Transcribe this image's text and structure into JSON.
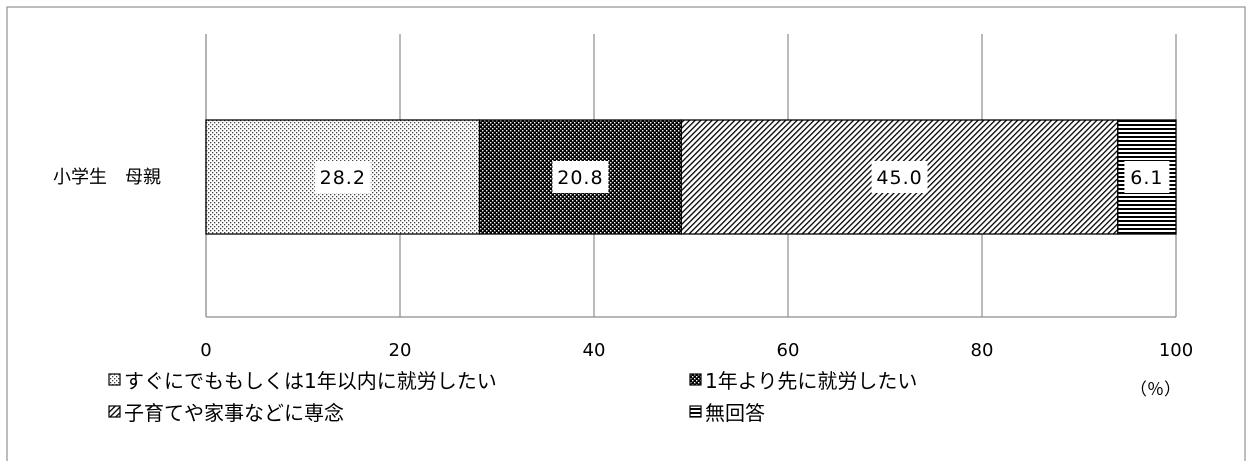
{
  "chart_data": {
    "type": "bar",
    "orientation": "horizontal",
    "stacked": true,
    "categories": [
      "小学生　母親"
    ],
    "series": [
      {
        "name": "すぐにでももしくは1年以内に就労したい",
        "values": [
          28.2
        ],
        "label": "28.2",
        "pattern": "dots"
      },
      {
        "name": "1年より先に就労したい",
        "values": [
          20.8
        ],
        "label": "20.8",
        "pattern": "dense-checker"
      },
      {
        "name": "子育てや家事などに専念",
        "values": [
          45.0
        ],
        "label": "45.0",
        "pattern": "diagonal"
      },
      {
        "name": "無回答",
        "values": [
          6.1
        ],
        "label": "6.1",
        "pattern": "horizontal-lines"
      }
    ],
    "xlim": [
      0,
      100
    ],
    "x_ticks": [
      "0",
      "20",
      "40",
      "60",
      "80",
      "100"
    ],
    "x_unit": "（％）",
    "grid": true,
    "legend_placement": "bottom",
    "colors": {
      "frame": "#999999",
      "grid": "#8c8c8c",
      "bar_edge": "#000000",
      "ink": "#000000"
    }
  }
}
